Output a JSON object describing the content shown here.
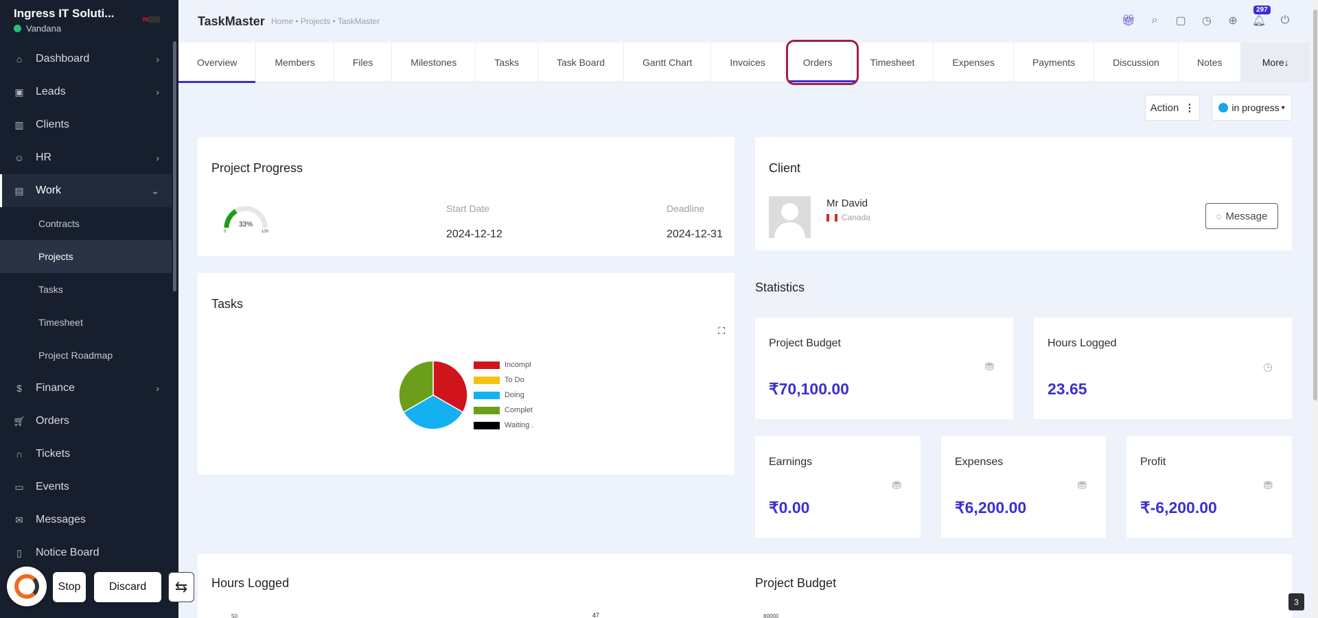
{
  "sidebar": {
    "company": "Ingress IT Soluti...",
    "user": "Vandana",
    "items": [
      {
        "label": "Dashboard",
        "icon": "home-icon"
      },
      {
        "label": "Leads",
        "icon": "contact-card-icon"
      },
      {
        "label": "Clients",
        "icon": "building-icon"
      },
      {
        "label": "HR",
        "icon": "people-icon"
      },
      {
        "label": "Work",
        "icon": "briefcase-icon"
      },
      {
        "label": "Finance",
        "icon": "dollar-icon"
      },
      {
        "label": "Orders",
        "icon": "cart-icon"
      },
      {
        "label": "Tickets",
        "icon": "headset-icon"
      },
      {
        "label": "Events",
        "icon": "calendar-icon"
      },
      {
        "label": "Messages",
        "icon": "message-icon"
      },
      {
        "label": "Notice Board",
        "icon": "clipboard-icon"
      }
    ],
    "work_sub": [
      "Contracts",
      "Projects",
      "Tasks",
      "Timesheet",
      "Project Roadmap"
    ]
  },
  "floating": {
    "stop_label": "Stop",
    "discard_label": "Discard"
  },
  "header": {
    "title": "TaskMaster",
    "breadcrumb": "Home • Projects • TaskMaster",
    "notification_count": "297"
  },
  "tabs": [
    "Overview",
    "Members",
    "Files",
    "Milestones",
    "Tasks",
    "Task Board",
    "Gantt Chart",
    "Invoices",
    "Orders",
    "Timesheet",
    "Expenses",
    "Payments",
    "Discussion",
    "Notes",
    "More↓"
  ],
  "actions": {
    "action_label": "Action",
    "status_label": "in progress"
  },
  "project_progress": {
    "title": "Project Progress",
    "percent_label": "33%",
    "progress_fraction": 0.33,
    "gauge_min": "0",
    "gauge_max": "100",
    "start_label": "Start Date",
    "start_value": "2024-12-12",
    "deadline_label": "Deadline",
    "deadline_value": "2024-12-31"
  },
  "client": {
    "title": "Client",
    "name": "Mr David",
    "country": "Canada",
    "message_label": "Message"
  },
  "tasks_card": {
    "title": "Tasks"
  },
  "chart_data": {
    "type": "pie",
    "categories": [
      "Incompl",
      "To Do",
      "Doing",
      "Complet",
      "Waiting ."
    ],
    "values": [
      1,
      0,
      1,
      1,
      0
    ],
    "colors": [
      "#d0141c",
      "#f5c214",
      "#14b1f2",
      "#6b9e1a",
      "#000000"
    ],
    "legend": "right"
  },
  "statistics": {
    "title": "Statistics",
    "budget_label": "Project Budget",
    "budget_value": "₹70,100.00",
    "hours_label": "Hours Logged",
    "hours_value": "23.65",
    "earnings_label": "Earnings",
    "earnings_value": "₹0.00",
    "expenses_label": "Expenses",
    "expenses_value": "₹6,200.00",
    "profit_label": "Profit",
    "profit_value": "₹-6,200.00"
  },
  "bottom": {
    "hours_title": "Hours Logged",
    "budget_title": "Project Budget",
    "hours_axis_top": "50",
    "hours_peak": "47",
    "budget_axis_top": "80000"
  },
  "corner_chip": "3"
}
